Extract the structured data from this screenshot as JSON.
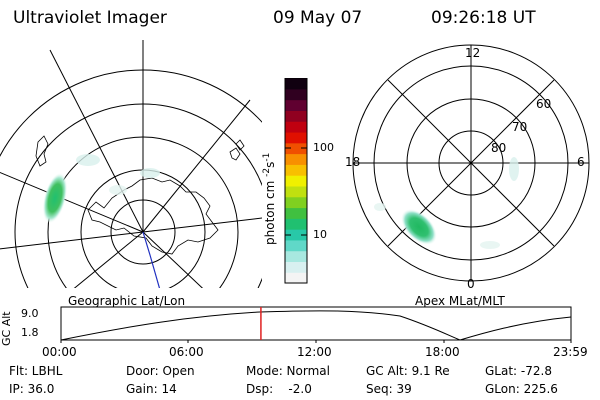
{
  "header": {
    "instrument": "Ultraviolet Imager",
    "date": "09 May 07",
    "time": "09:26:18 UT"
  },
  "left_map": {
    "caption": "Geographic Lat/Lon"
  },
  "colorbar": {
    "unit": "photon cm",
    "unit_exp1": "-2",
    "unit_s": "s",
    "unit_exp2": "-1",
    "ticks": [
      {
        "label": "100",
        "value": 100
      },
      {
        "label": "10",
        "value": 10
      }
    ],
    "colors": [
      "#f4f4f4",
      "#d8f0f0",
      "#a8e8e0",
      "#60d8c8",
      "#28c8a8",
      "#20c070",
      "#40c040",
      "#80d020",
      "#c0e010",
      "#f0f000",
      "#f8c000",
      "#f89000",
      "#f05000",
      "#e01000",
      "#c00010",
      "#900020",
      "#600030",
      "#300020",
      "#100010"
    ]
  },
  "right_map": {
    "caption": "Apex MLat/MLT",
    "lat_labels": [
      "60",
      "70",
      "80"
    ],
    "mlt_labels": {
      "top": "12",
      "bottom": "0",
      "left": "18",
      "right": "6"
    }
  },
  "altitude_plot": {
    "ylabel": "GC Alt",
    "yticks": [
      "9.0",
      "1.8"
    ],
    "xticks": [
      "00:00",
      "06:00",
      "12:00",
      "18:00",
      "23:59"
    ],
    "current_time_fraction": 0.392
  },
  "info": {
    "filter": "Flt: LBHL",
    "door": "Door: Open",
    "mode": "Mode: Normal",
    "gc_alt": "GC Alt: 9.1 Re",
    "glat": "GLat: -72.8",
    "ip": "IP: 36.0",
    "gain": "Gain: 14",
    "dsp": "Dsp:    -2.0",
    "seq": "Seq: 39",
    "glon": "GLon: 225.6"
  }
}
